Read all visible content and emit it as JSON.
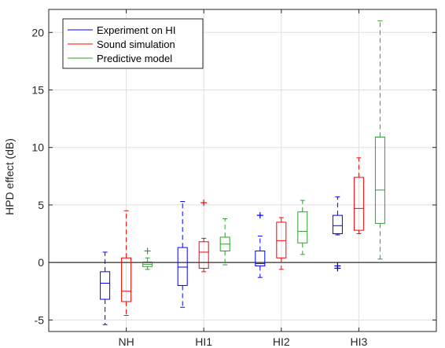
{
  "chart_data": {
    "type": "boxplot",
    "title": "",
    "xlabel": "",
    "ylabel": "HPD effect (dB)",
    "ylim": [
      -6,
      22
    ],
    "yticks": [
      -5,
      0,
      5,
      10,
      15,
      20
    ],
    "ytick_labels": [
      "-5",
      "0",
      "5",
      "10",
      "15",
      "20"
    ],
    "categories": [
      "NH",
      "HI1",
      "HI2",
      "HI3"
    ],
    "grid": true,
    "zero_line": true,
    "legend_position": "top-left",
    "series": [
      {
        "name": "Experiment on HI",
        "color": "#0000ff",
        "boxes": [
          {
            "whisker_low": -5.4,
            "q1": -3.2,
            "median": -1.8,
            "q3": -0.8,
            "whisker_high": 0.9,
            "outliers": []
          },
          {
            "whisker_low": -3.9,
            "q1": -2.0,
            "median": -0.4,
            "q3": 1.3,
            "whisker_high": 5.3,
            "outliers": []
          },
          {
            "whisker_low": -1.3,
            "q1": -0.3,
            "median": -0.1,
            "q3": 1.0,
            "whisker_high": 2.3,
            "outliers": [
              4.1
            ]
          },
          {
            "whisker_low": 2.4,
            "q1": 2.5,
            "median": 3.2,
            "q3": 4.1,
            "whisker_high": 5.7,
            "outliers": [
              -0.3,
              -0.5
            ]
          }
        ]
      },
      {
        "name": "Sound simulation",
        "color": "#ff0000",
        "boxes": [
          {
            "whisker_low": -4.6,
            "q1": -3.4,
            "median": -2.5,
            "q3": 0.4,
            "whisker_high": 4.5,
            "outliers": []
          },
          {
            "whisker_low": -0.8,
            "q1": -0.5,
            "median": 0.9,
            "q3": 1.8,
            "whisker_high": 2.1,
            "outliers": [
              5.2
            ]
          },
          {
            "whisker_low": -0.6,
            "q1": 0.4,
            "median": 1.9,
            "q3": 3.5,
            "whisker_high": 3.9,
            "outliers": []
          },
          {
            "whisker_low": 2.5,
            "q1": 2.8,
            "median": 4.7,
            "q3": 7.4,
            "whisker_high": 9.1,
            "outliers": []
          }
        ]
      },
      {
        "name": "Predictive model",
        "color": "#2ca02c",
        "boxes": [
          {
            "whisker_low": -0.6,
            "q1": -0.35,
            "median": -0.15,
            "q3": 0.05,
            "whisker_high": 0.4,
            "outliers": [
              1.0
            ]
          },
          {
            "whisker_low": -0.2,
            "q1": 1.0,
            "median": 1.6,
            "q3": 2.2,
            "whisker_high": 3.8,
            "outliers": []
          },
          {
            "whisker_low": 0.7,
            "q1": 1.7,
            "median": 2.7,
            "q3": 4.4,
            "whisker_high": 5.4,
            "outliers": []
          },
          {
            "whisker_low": 0.3,
            "q1": 3.4,
            "median": 6.3,
            "q3": 10.9,
            "whisker_high": 21.0,
            "outliers": []
          }
        ]
      }
    ]
  }
}
